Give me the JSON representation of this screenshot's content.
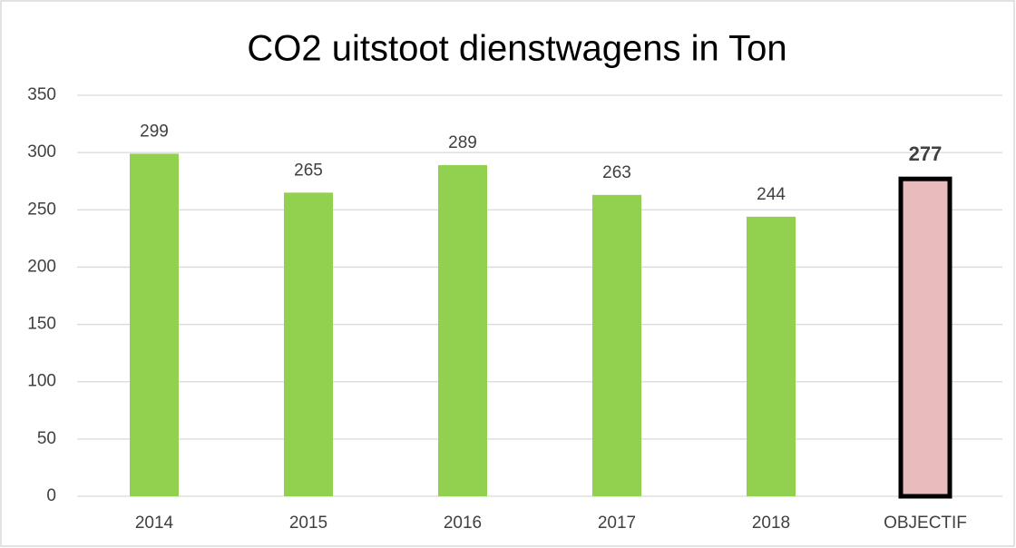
{
  "chart_data": {
    "type": "bar",
    "title": "CO2 uitstoot dienstwagens in Ton",
    "categories": [
      "2014",
      "2015",
      "2016",
      "2017",
      "2018",
      "OBJECTIF"
    ],
    "values": [
      299,
      265,
      289,
      263,
      244,
      277
    ],
    "colors": [
      "#92d050",
      "#92d050",
      "#92d050",
      "#92d050",
      "#92d050",
      "#e8bcbc"
    ],
    "edgecolors": [
      null,
      null,
      null,
      null,
      null,
      "#000000"
    ],
    "ylim": [
      0,
      350
    ],
    "yticks": [
      0,
      50,
      100,
      150,
      200,
      250,
      300,
      350
    ],
    "grid": true
  }
}
